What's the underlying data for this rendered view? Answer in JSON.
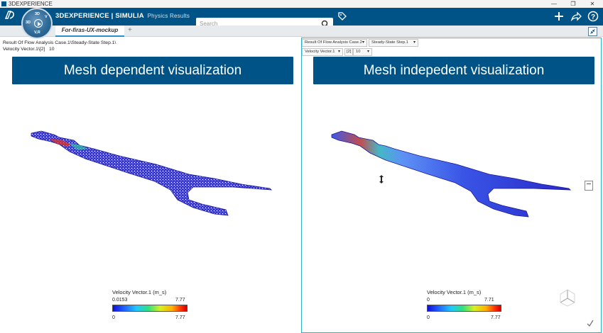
{
  "window": {
    "title": "3DEXPERIENCE",
    "controls": [
      "—",
      "❐",
      "✕"
    ]
  },
  "header": {
    "brand_main": "3DEXPERIENCE | SIMULIA",
    "brand_sub": "Physics Results",
    "compass": {
      "top": "3D",
      "center": "V",
      "bottom": "V,R"
    },
    "search": {
      "placeholder": "Search"
    },
    "icons": [
      "tag-icon",
      "add-icon",
      "share-icon",
      "help-icon"
    ]
  },
  "tabs": [
    {
      "label": "For-firas-UX-mockup"
    }
  ],
  "left_panel": {
    "path": "Result Of Flow Analysis Case.1\\Steady-State Step.1\\",
    "variable": "Velocity Vector.1\\[2]",
    "variable_value": "10",
    "banner": "Mesh dependent visualization",
    "legend": {
      "title": "Velocity Vector.1 (m_s)",
      "top_min": "0.0153",
      "top_max": "7.77",
      "bottom_min": "0",
      "bottom_max": "7.77"
    }
  },
  "right_panel": {
    "dropdowns": {
      "case": "Result Of Flow Analysis Case.2",
      "step": "Steady-State Step.1",
      "variable": "Velocity Vector.1",
      "component": "[2]",
      "value": "10"
    },
    "banner": "Mesh indepedent visualization",
    "legend": {
      "title": "Velocity Vector.1 (m_s)",
      "top_min": "0",
      "top_max": "7.71",
      "bottom_min": "0",
      "bottom_max": "7.77"
    }
  },
  "colors": {
    "header_bg": "#005386",
    "accent_frame": "#2fb2c0",
    "tab_underline": "#2b8fd6"
  }
}
